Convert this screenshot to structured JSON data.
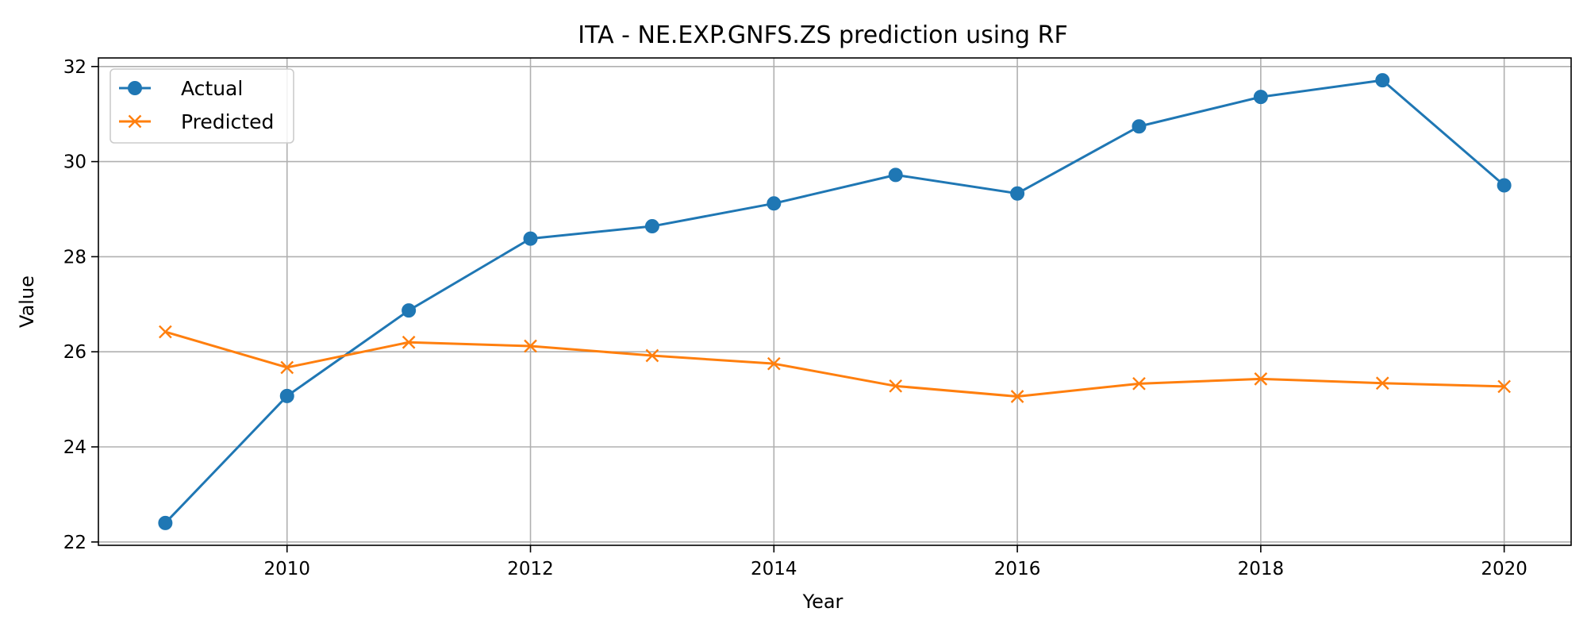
{
  "chart_data": {
    "type": "line",
    "title": "ITA - NE.EXP.GNFS.ZS prediction using RF",
    "xlabel": "Year",
    "ylabel": "Value",
    "x": [
      2009,
      2010,
      2011,
      2012,
      2013,
      2014,
      2015,
      2016,
      2017,
      2018,
      2019,
      2020
    ],
    "series": [
      {
        "name": "Actual",
        "color": "#1f77b4",
        "marker": "circle",
        "values": [
          22.4,
          25.07,
          26.87,
          28.38,
          28.64,
          29.12,
          29.72,
          29.33,
          30.74,
          31.36,
          31.71,
          29.5
        ]
      },
      {
        "name": "Predicted",
        "color": "#ff7f0e",
        "marker": "x",
        "values": [
          26.42,
          25.67,
          26.2,
          26.12,
          25.92,
          25.75,
          25.28,
          25.06,
          25.33,
          25.43,
          25.34,
          25.27
        ]
      }
    ],
    "xlim": [
      2008.45,
      2020.55
    ],
    "ylim": [
      21.93,
      32.18
    ],
    "xticks": [
      2010,
      2012,
      2014,
      2016,
      2018,
      2020
    ],
    "yticks": [
      22,
      24,
      26,
      28,
      30,
      32
    ],
    "grid": true,
    "legend_position": "top-left"
  }
}
